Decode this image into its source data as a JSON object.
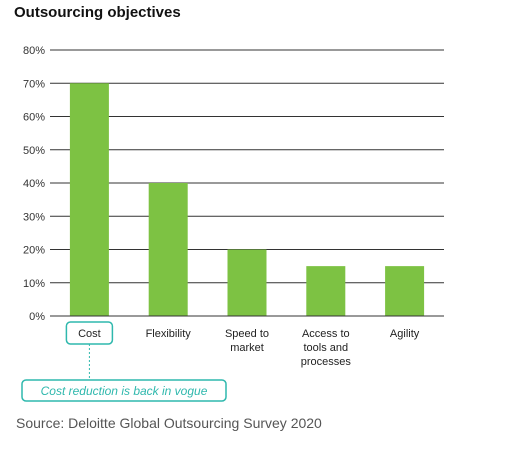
{
  "title": "Outsourcing objectives",
  "source": "Source: Deloitte Global Outsourcing Survey 2020",
  "colors": {
    "bar": "#7dc243",
    "accent": "#2fb8ad",
    "annotation_text": "#2fb8ad",
    "grid": "#333333",
    "tick_text": "#333333"
  },
  "chart_data": {
    "type": "bar",
    "title": "Outsourcing objectives",
    "xlabel": "",
    "ylabel": "",
    "categories": [
      "Cost",
      "Flexibility",
      "Speed to market",
      "Access to tools and processes",
      "Agility"
    ],
    "category_lines": [
      [
        "Cost"
      ],
      [
        "Flexibility"
      ],
      [
        "Speed to",
        "market"
      ],
      [
        "Access to",
        "tools and",
        "processes"
      ],
      [
        "Agility"
      ]
    ],
    "values": [
      70,
      40,
      20,
      15,
      15
    ],
    "ylim": [
      0,
      80
    ],
    "yticks": [
      0,
      10,
      20,
      30,
      40,
      50,
      60,
      70,
      80
    ],
    "ytick_labels": [
      "0%",
      "10%",
      "20%",
      "30%",
      "40%",
      "50%",
      "60%",
      "70%",
      "80%"
    ],
    "grid": true,
    "annotation": {
      "text": "Cost reduction is back in vogue",
      "category": "Cost"
    }
  }
}
